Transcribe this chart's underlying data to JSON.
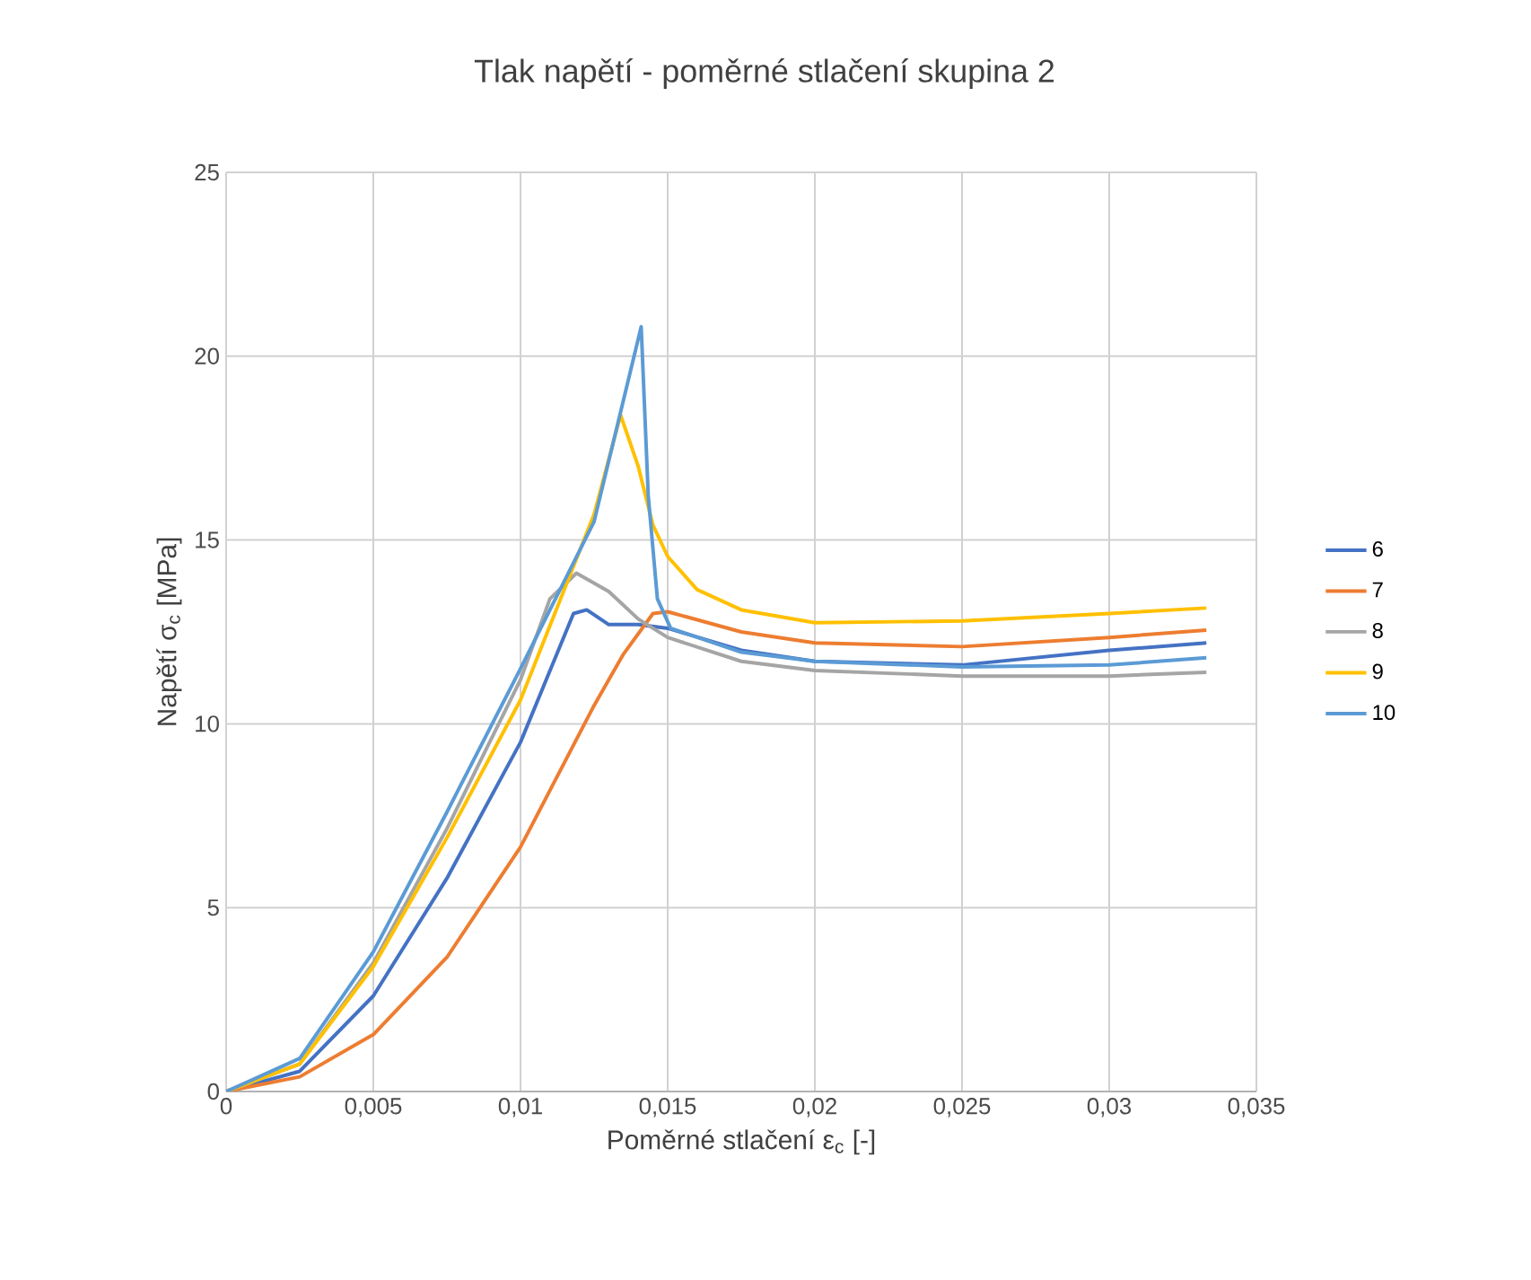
{
  "chart_data": {
    "type": "line",
    "title": "Tlak napětí - poměrné stlačení skupina 2",
    "xlabel": "Poměrné stlačení ε$_{c}$ [-]",
    "ylabel": "Napětí σ$_{c}$ [MPa]",
    "xlim": [
      0,
      0.035
    ],
    "ylim": [
      0,
      25
    ],
    "xticks": [
      0,
      {
        "value": 0.005,
        "label": "0,005"
      },
      {
        "value": 0.01,
        "label": "0,01"
      },
      {
        "value": 0.015,
        "label": "0,015"
      },
      {
        "value": 0.02,
        "label": "0,02"
      },
      {
        "value": 0.025,
        "label": "0,025"
      },
      {
        "value": 0.03,
        "label": "0,03"
      },
      {
        "value": 0.035,
        "label": "0,035"
      }
    ],
    "yticks": [
      0,
      5,
      10,
      15,
      20,
      25
    ],
    "grid": true,
    "legend": "right",
    "marker": "none",
    "series": [
      {
        "name": "6",
        "color": "#4472c4",
        "x": [
          0,
          0.0025,
          0.005,
          0.0075,
          0.01,
          0.0118,
          0.01225,
          0.013,
          0.014,
          0.015,
          0.0175,
          0.02,
          0.025,
          0.03,
          0.0333
        ],
        "values": [
          0,
          0.55,
          2.6,
          5.8,
          9.5,
          13.0,
          13.1,
          12.7,
          12.7,
          12.6,
          12.0,
          11.7,
          11.6,
          12.0,
          12.2
        ]
      },
      {
        "name": "7",
        "color": "#ed7d31",
        "x": [
          0,
          0.0025,
          0.005,
          0.0075,
          0.01,
          0.0125,
          0.0135,
          0.0145,
          0.015,
          0.0175,
          0.02,
          0.025,
          0.03,
          0.0333
        ],
        "values": [
          0,
          0.4,
          1.55,
          3.65,
          6.65,
          10.5,
          11.9,
          13.0,
          13.05,
          12.5,
          12.2,
          12.1,
          12.35,
          12.55
        ]
      },
      {
        "name": "8",
        "color": "#a5a5a5",
        "x": [
          0,
          0.0025,
          0.005,
          0.0075,
          0.01,
          0.011,
          0.0119,
          0.013,
          0.014,
          0.015,
          0.0175,
          0.02,
          0.025,
          0.03,
          0.0333
        ],
        "values": [
          0,
          0.75,
          3.5,
          7.15,
          11.2,
          13.4,
          14.1,
          13.6,
          12.85,
          12.35,
          11.7,
          11.45,
          11.3,
          11.3,
          11.4
        ]
      },
      {
        "name": "9",
        "color": "#ffc000",
        "x": [
          0,
          0.0025,
          0.005,
          0.0075,
          0.01,
          0.0125,
          0.0134,
          0.014,
          0.0145,
          0.015,
          0.016,
          0.0175,
          0.02,
          0.025,
          0.03,
          0.0333
        ],
        "values": [
          0,
          0.75,
          3.4,
          6.9,
          10.65,
          15.7,
          18.4,
          17.0,
          15.4,
          14.55,
          13.65,
          13.1,
          12.75,
          12.8,
          13.0,
          13.15
        ]
      },
      {
        "name": "10",
        "color": "#5b9bd5",
        "x": [
          0,
          0.0025,
          0.005,
          0.0075,
          0.01,
          0.0125,
          0.0141,
          0.01434,
          0.01465,
          0.0151,
          0.0175,
          0.02,
          0.025,
          0.03,
          0.0333
        ],
        "values": [
          0,
          0.9,
          3.8,
          7.6,
          11.5,
          15.5,
          20.8,
          16.2,
          13.4,
          12.6,
          11.95,
          11.7,
          11.55,
          11.6,
          11.8
        ]
      }
    ]
  }
}
